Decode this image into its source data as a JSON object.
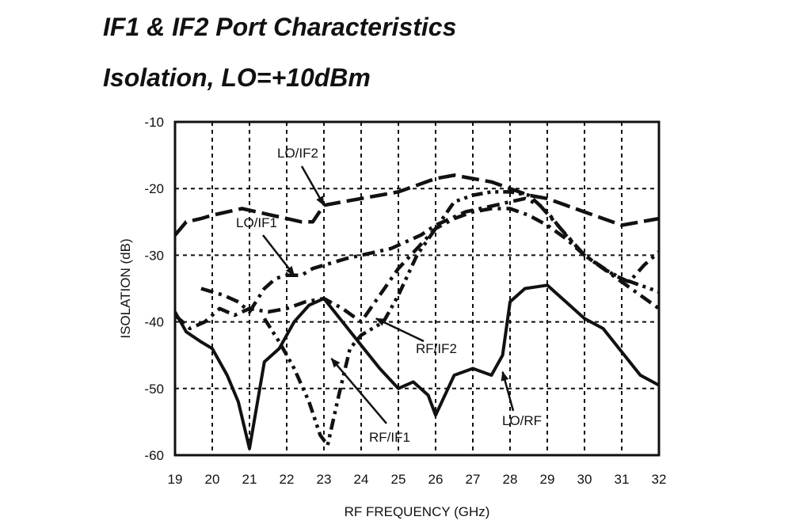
{
  "header": {
    "title": "IF1 & IF2 Port Characteristics",
    "subtitle": "Isolation, LO=+10dBm"
  },
  "chart_data": {
    "type": "line",
    "title": "IF1 & IF2 Port Characteristics",
    "subtitle": "Isolation, LO=+10dBm",
    "xlabel": "RF FREQUENCY (GHz)",
    "ylabel": "ISOLATION (dB)",
    "xlim": [
      19,
      32
    ],
    "ylim": [
      -60,
      -10
    ],
    "xticks": [
      19,
      20,
      21,
      22,
      23,
      24,
      25,
      26,
      27,
      28,
      29,
      30,
      31,
      32
    ],
    "yticks": [
      -10,
      -20,
      -30,
      -40,
      -50,
      -60
    ],
    "grid": true,
    "legend": "none",
    "series": [
      {
        "name": "LO/RF",
        "style": "solid",
        "x": [
          19,
          19.3,
          19.7,
          20,
          20.4,
          20.7,
          21,
          21.4,
          21.8,
          22.2,
          22.6,
          23,
          23.5,
          24,
          24.5,
          25,
          25.4,
          25.8,
          26,
          26.5,
          27,
          27.5,
          27.8,
          28,
          28.4,
          29,
          29.5,
          30,
          30.5,
          31,
          31.5,
          32
        ],
        "y": [
          -38.5,
          -41.5,
          -43,
          -44,
          -48,
          -52,
          -59,
          -46,
          -44,
          -40,
          -37.5,
          -36.5,
          -40,
          -43.5,
          -47,
          -50,
          -49,
          -51,
          -54,
          -48,
          -47,
          -48,
          -45,
          -37,
          -35,
          -34.5,
          -37,
          -39.5,
          -41,
          -44.5,
          -48,
          -49.5
        ]
      },
      {
        "name": "LO/IF2",
        "style": "dash",
        "x": [
          19,
          19.3,
          19.7,
          20,
          20.4,
          20.8,
          21.2,
          21.6,
          22,
          22.4,
          22.7,
          23,
          23.5,
          24,
          24.5,
          25,
          25.5,
          26,
          26.5,
          27,
          27.5,
          28,
          28.5,
          29,
          29.5,
          30,
          30.5,
          31,
          31.5,
          32
        ],
        "y": [
          -27,
          -25,
          -24.5,
          -24,
          -23.5,
          -23,
          -23.5,
          -24,
          -24.5,
          -25,
          -25,
          -22.5,
          -22,
          -21.5,
          -21,
          -20.5,
          -19.5,
          -18.5,
          -18,
          -18.5,
          -19,
          -20,
          -21,
          -21.5,
          -22.5,
          -23.5,
          -24.5,
          -25.5,
          -25,
          -24.5
        ]
      },
      {
        "name": "LO/IF1",
        "style": "dash-dot",
        "x": [
          19.7,
          20,
          20.3,
          20.7,
          21,
          21.4,
          21.7,
          22,
          22.4,
          22.7,
          23,
          23.3,
          23.6,
          24,
          24.4,
          24.8,
          25.2,
          25.6,
          26,
          26.4,
          26.8,
          27.2,
          27.6,
          28,
          28.4,
          28.8,
          29.2,
          29.6,
          30,
          30.4,
          30.8,
          31.2,
          31.6,
          32
        ],
        "y": [
          -35,
          -35.5,
          -36,
          -37,
          -38.5,
          -35,
          -33.5,
          -33,
          -33,
          -32,
          -31.5,
          -31,
          -30.5,
          -30,
          -29.5,
          -29,
          -28,
          -27,
          -25.5,
          -24.5,
          -23.5,
          -23,
          -22.5,
          -22,
          -21.5,
          -22.5,
          -25,
          -27.5,
          -30,
          -31.5,
          -33,
          -34,
          -31.5,
          -29.5
        ]
      },
      {
        "name": "RF/IF2",
        "style": "dash-dot",
        "x": [
          19,
          19.4,
          19.8,
          20.2,
          20.6,
          21,
          21.5,
          22,
          22.5,
          23,
          23.5,
          24,
          24.5,
          25,
          25.5,
          26,
          26.5,
          27,
          27.5,
          28,
          28.5,
          29,
          29.5,
          30,
          30.5,
          31,
          31.5,
          32
        ],
        "y": [
          -39,
          -41,
          -40,
          -38,
          -39,
          -38,
          -38.5,
          -38,
          -37,
          -36.5,
          -38,
          -40,
          -36,
          -32,
          -29,
          -26,
          -24.5,
          -23.5,
          -23,
          -23,
          -24,
          -25.5,
          -27.5,
          -30,
          -32,
          -34,
          -36,
          -38
        ]
      },
      {
        "name": "RF/IF1",
        "style": "dash-dot-dot",
        "x": [
          21.4,
          21.8,
          22.2,
          22.6,
          22.9,
          23.1,
          23.4,
          23.7,
          24,
          24.3,
          24.6,
          25,
          25.5,
          26,
          26.5,
          27,
          27.5,
          28,
          28.5,
          29,
          29.5,
          30,
          30.5,
          31,
          31.5,
          32
        ],
        "y": [
          -39.5,
          -43,
          -47,
          -52,
          -57,
          -58.5,
          -51,
          -44,
          -42,
          -41,
          -40,
          -36,
          -30,
          -26,
          -22,
          -21,
          -20.5,
          -20.5,
          -21,
          -23.5,
          -27,
          -30,
          -32,
          -33.5,
          -34.5,
          -35.5
        ]
      }
    ],
    "annotations": [
      {
        "text": "LO/IF2",
        "x": 23.0,
        "y": -22.5
      },
      {
        "text": "LO/IF1",
        "x": 22.2,
        "y": -33.0
      },
      {
        "text": "RF/IF2",
        "x": 24.4,
        "y": -39.5
      },
      {
        "text": "RF/IF1",
        "x": 23.2,
        "y": -45.5
      },
      {
        "text": "LO/RF",
        "x": 27.8,
        "y": -47.5
      }
    ]
  }
}
